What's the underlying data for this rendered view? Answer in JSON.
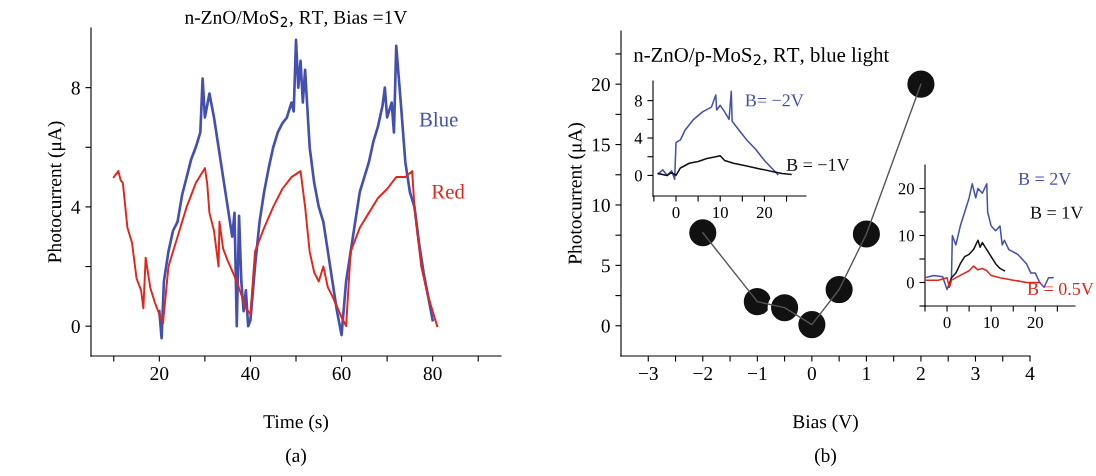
{
  "chart_data": [
    {
      "type": "line",
      "title": "n-ZnO/MoS$_{2}$, RT, Bias =1V",
      "xlabel": "Time (s)",
      "ylabel": "Photocurrent (μA)",
      "annotations": [
        "(a)"
      ],
      "xlim": [
        5,
        95
      ],
      "ylim": [
        -1,
        10
      ],
      "xticks": [
        {
          "value": 10,
          "label": null
        },
        20,
        {
          "value": 30,
          "label": null
        },
        40,
        {
          "value": 50,
          "label": null
        },
        60,
        {
          "value": 70,
          "label": null
        },
        80,
        {
          "value": 90,
          "label": null
        }
      ],
      "yticks": [
        0,
        {
          "value": 2,
          "label": null
        },
        4,
        {
          "value": 6,
          "label": null
        },
        8
      ],
      "grid": false,
      "legend": false,
      "marker": "none",
      "line_style": "solid",
      "series": [
        {
          "name": "Blue",
          "color": "#4450b0",
          "x": [
            20,
            20.5,
            21,
            22,
            23,
            24,
            25,
            26,
            27,
            28,
            29,
            29.5,
            30,
            31,
            32,
            33,
            34,
            35,
            36,
            36.5,
            37,
            37.5,
            38,
            38.5,
            39,
            39.5,
            40,
            41,
            42,
            43,
            44,
            45,
            46,
            47,
            48,
            49,
            49.5,
            50,
            50.5,
            51,
            51.5,
            52,
            53,
            54,
            55,
            56,
            57,
            58,
            59,
            60,
            61,
            62,
            63,
            64,
            65,
            66,
            67,
            68,
            69,
            69.5,
            70,
            71,
            71.5,
            72,
            73,
            74,
            75,
            76,
            77,
            78,
            79,
            80
          ],
          "values": [
            0.5,
            -0.4,
            1.5,
            2.5,
            3.2,
            3.5,
            4.4,
            5,
            5.6,
            6,
            6.5,
            8.3,
            7,
            7.8,
            7,
            6,
            5,
            4,
            3,
            3.8,
            0,
            3.7,
            1.5,
            0.5,
            1.2,
            0,
            0.2,
            2,
            3.5,
            4.5,
            5.3,
            6,
            6.5,
            6.8,
            7,
            7.5,
            7.2,
            9.6,
            8,
            8.9,
            7.5,
            8.6,
            6,
            4.8,
            4,
            3.5,
            2.5,
            1.5,
            0.5,
            -0.3,
            1.5,
            2.5,
            3.5,
            4.5,
            5,
            5.5,
            6.2,
            6.7,
            7.4,
            8,
            7,
            7.5,
            6.5,
            9.4,
            7.5,
            5.5,
            4.5,
            4,
            2.8,
            1.8,
            1,
            0.2
          ]
        },
        {
          "name": "Red",
          "color": "#e2261c",
          "x": [
            10,
            11,
            11.5,
            12,
            13,
            14,
            15,
            16,
            16.5,
            17,
            18,
            19,
            20,
            20.8,
            22,
            24,
            26,
            28,
            30,
            30.5,
            31,
            32,
            33,
            33.2,
            34,
            35,
            37,
            39,
            40,
            41,
            43,
            45,
            47,
            49,
            51,
            52,
            53,
            54,
            55,
            56,
            57,
            58,
            60,
            61,
            62,
            64,
            66,
            68,
            70,
            72,
            74,
            75.5,
            76,
            77.5,
            79,
            81
          ],
          "values": [
            5,
            5.2,
            4.9,
            4.8,
            3.3,
            2.8,
            1.6,
            1.2,
            0.6,
            2.3,
            1.3,
            0.8,
            0.4,
            0.1,
            2,
            3,
            4,
            4.8,
            5.3,
            4.8,
            3.8,
            3.2,
            2,
            3.5,
            2.6,
            2.2,
            1.5,
            0.6,
            0.4,
            2.5,
            3.3,
            4,
            4.6,
            5,
            5.2,
            4,
            2.5,
            1.8,
            1.5,
            2,
            1.3,
            1,
            0.3,
            0,
            2.5,
            3.3,
            3.8,
            4.3,
            4.6,
            5,
            5,
            5.2,
            4,
            2,
            1,
            0
          ]
        }
      ]
    },
    {
      "type": "line",
      "title": "n-ZnO/p-MoS$_{2}$, RT, blue light",
      "xlabel": "Bias (V)",
      "ylabel": "Photocurrent (μA)",
      "annotations": [
        "(b)"
      ],
      "xlim": [
        -3.5,
        4
      ],
      "ylim": [
        -2.5,
        24.4
      ],
      "xticks": [
        -3,
        {
          "value": -2.5,
          "label": null
        },
        -2,
        {
          "value": -1.5,
          "label": null
        },
        -1,
        {
          "value": -0.5,
          "label": null
        },
        0,
        {
          "value": 0.5,
          "label": null
        },
        1,
        {
          "value": 1.5,
          "label": null
        },
        2,
        {
          "value": 2.5,
          "label": null
        },
        3,
        {
          "value": 3.5,
          "label": null
        },
        4
      ],
      "yticks": [
        0,
        {
          "value": 2.5,
          "label": null
        },
        5,
        {
          "value": 7.5,
          "label": null
        },
        10,
        {
          "value": 12.5,
          "label": null
        },
        15,
        {
          "value": 17.5,
          "label": null
        },
        20,
        {
          "value": 22.5,
          "label": null
        }
      ],
      "grid": false,
      "legend": false,
      "series": [
        {
          "type": "scatter",
          "marker": "circle",
          "color": "#111111",
          "x": [
            -2,
            -1,
            -0.5,
            0,
            0.5,
            1,
            2
          ],
          "values": [
            7.7,
            2,
            1.5,
            0.1,
            3,
            7.6,
            20
          ]
        },
        {
          "type": "line",
          "line_style": "solid",
          "color": "#555555",
          "x": [
            -2,
            -1,
            -0.5,
            0,
            0.5,
            1,
            2
          ],
          "values": [
            7.7,
            2,
            1.5,
            0.1,
            3,
            7.6,
            20
          ]
        }
      ]
    },
    {
      "type": "line",
      "xlim": [
        -5.2,
        29.4
      ],
      "ylim": [
        -2.2,
        10.1
      ],
      "xticks": [
        {
          "value": -5,
          "label": null
        },
        0,
        {
          "value": 5,
          "label": null
        },
        10,
        {
          "value": 15,
          "label": null
        },
        20,
        {
          "value": 25,
          "label": null
        }
      ],
      "yticks": [
        0,
        {
          "value": 2,
          "label": null
        },
        4,
        {
          "value": 6,
          "label": null
        },
        8
      ],
      "grid": false,
      "legend": false,
      "marker": "none",
      "line_style": "solid",
      "series": [
        {
          "name": "B= −2V",
          "color": "#4450b0",
          "x": [
            -4,
            -3,
            -2,
            -1,
            -0.3,
            0,
            1,
            2,
            4,
            6,
            8,
            9,
            9.2,
            10,
            11,
            12,
            12.5,
            12.7,
            14,
            16,
            18,
            20,
            22,
            23
          ],
          "values": [
            0.2,
            0.6,
            0,
            0.5,
            -0.4,
            3.5,
            3.8,
            4.8,
            6,
            6.8,
            7.3,
            8.6,
            7,
            7.5,
            6.8,
            6,
            9,
            5.8,
            5,
            3.8,
            2.8,
            1.6,
            0.6,
            0.1
          ]
        },
        {
          "name": "B = −1V",
          "color": "#111111",
          "x": [
            -4,
            -2,
            -1,
            0,
            1,
            3,
            5,
            7,
            9,
            10,
            11,
            13,
            16,
            19,
            22,
            24,
            26
          ],
          "values": [
            0.2,
            0,
            0.3,
            0,
            0.8,
            1.3,
            1.5,
            1.8,
            2,
            2.1,
            1.6,
            1.3,
            1,
            0.7,
            0.4,
            0.2,
            0.1
          ]
        }
      ]
    },
    {
      "type": "line",
      "xlim": [
        -5,
        29
      ],
      "ylim": [
        -5,
        25
      ],
      "xticks": [
        {
          "value": -5,
          "label": null
        },
        0,
        {
          "value": 5,
          "label": null
        },
        10,
        {
          "value": 15,
          "label": null
        },
        20,
        {
          "value": 25,
          "label": null
        }
      ],
      "yticks": [
        {
          "value": -5,
          "label": null
        },
        0,
        {
          "value": 5,
          "label": null
        },
        10,
        {
          "value": 15,
          "label": null
        },
        20
      ],
      "grid": false,
      "legend": false,
      "marker": "none",
      "line_style": "solid",
      "series": [
        {
          "name": "B = 2V",
          "color": "#4450b0",
          "x": [
            -5,
            -3,
            -1,
            0,
            1,
            1.2,
            2,
            3,
            4,
            5,
            5.7,
            6.5,
            7,
            8,
            9,
            9.2,
            10,
            11,
            12,
            12.5,
            13,
            14,
            16,
            18,
            19,
            20,
            21,
            22,
            23,
            24
          ],
          "values": [
            1,
            1.5,
            1.2,
            -1.5,
            1,
            10,
            8,
            12,
            15,
            18,
            21,
            18,
            20,
            19,
            21,
            15,
            12,
            11,
            12,
            8,
            9,
            7,
            6,
            4,
            2,
            2,
            0,
            -1,
            1,
            1
          ]
        },
        {
          "name": "B = 1V",
          "color": "#111111",
          "x": [
            0.5,
            1,
            2,
            3,
            4,
            5,
            6,
            7,
            7.5,
            8,
            9,
            10,
            11,
            12,
            13
          ],
          "values": [
            -1,
            1,
            2,
            4,
            5.5,
            6,
            7,
            9,
            7.5,
            8.5,
            7,
            5.5,
            4,
            3,
            2.5
          ]
        },
        {
          "name": "B = 0.5V",
          "color": "#e2261c",
          "x": [
            -5,
            -2,
            0,
            0.5,
            1,
            3,
            5,
            6,
            7,
            8,
            9,
            10,
            12,
            15,
            18,
            21
          ],
          "values": [
            0.5,
            0.5,
            1,
            -1,
            0.5,
            1.5,
            2.5,
            3.5,
            2.7,
            3,
            2.5,
            1.5,
            1,
            0.5,
            0,
            0
          ]
        }
      ]
    }
  ]
}
